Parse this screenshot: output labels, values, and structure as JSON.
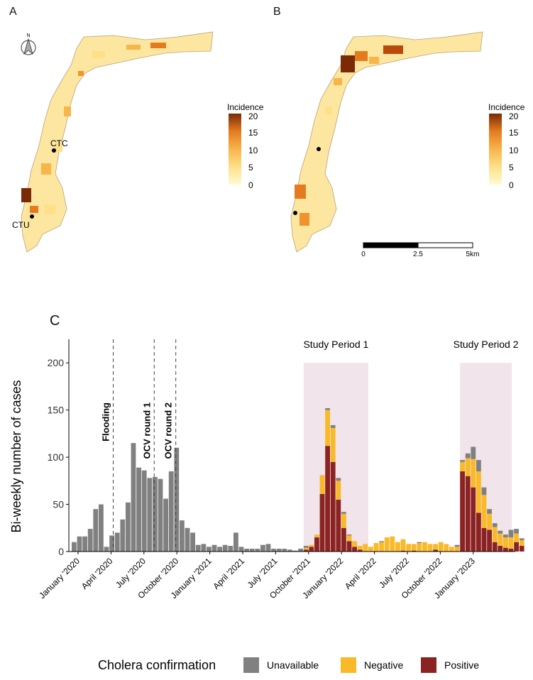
{
  "panels": {
    "a": "A",
    "b": "B",
    "c": "C"
  },
  "north_label": "N",
  "map_labels": {
    "ctc": "CTC",
    "ctu": "CTU"
  },
  "legend": {
    "title": "Incidence",
    "ticks": [
      "20",
      "15",
      "10",
      "5",
      "0"
    ],
    "colors": [
      "#fffbd4",
      "#fde089",
      "#f7b54a",
      "#e47c1f",
      "#b94a0c",
      "#7a2a05"
    ]
  },
  "scalebar": {
    "ticks": [
      "0",
      "2.5",
      "5km"
    ]
  },
  "chart_data": {
    "type": "bar",
    "stacked": true,
    "ylabel": "Bi-weekly number of cases",
    "ylim": [
      0,
      225
    ],
    "yticks": [
      0,
      50,
      100,
      150,
      200
    ],
    "x_tick_labels": [
      "January '2020",
      "April '2020",
      "July '2020",
      "October '2020",
      "January '2021",
      "April '2021",
      "July '2021",
      "October '2021",
      "January '2022",
      "April '2022",
      "July '2022",
      "October '2022",
      "January '2023"
    ],
    "series": [
      {
        "name": "Unavailable",
        "color": "#808080",
        "values": [
          10,
          16,
          16,
          24,
          45,
          50,
          5,
          17,
          20,
          34,
          52,
          115,
          89,
          86,
          78,
          79,
          77,
          56,
          85,
          110,
          33,
          25,
          20,
          7,
          8,
          5,
          7,
          5,
          7,
          6,
          20,
          5,
          3,
          3,
          3,
          7,
          8,
          3,
          3,
          3,
          2,
          1,
          3,
          2,
          0,
          0,
          0,
          2,
          3,
          3,
          2,
          1,
          0,
          0,
          0,
          0,
          0,
          1,
          0,
          0,
          0,
          0,
          0,
          0,
          1,
          0,
          0,
          0,
          0,
          0,
          0,
          2,
          2,
          5,
          13,
          12,
          8,
          5,
          4,
          3,
          3,
          8,
          5,
          2
        ]
      },
      {
        "name": "Negative",
        "color": "#f9b928",
        "values": [
          0,
          0,
          0,
          0,
          0,
          0,
          0,
          0,
          0,
          0,
          0,
          0,
          0,
          0,
          0,
          0,
          0,
          0,
          0,
          0,
          0,
          0,
          0,
          0,
          0,
          0,
          0,
          0,
          0,
          0,
          0,
          0,
          0,
          0,
          0,
          0,
          0,
          0,
          0,
          0,
          0,
          0,
          0,
          2,
          2,
          3,
          20,
          38,
          36,
          20,
          15,
          6,
          6,
          4,
          8,
          5,
          9,
          10,
          15,
          16,
          10,
          12,
          8,
          7,
          9,
          10,
          8,
          6,
          10,
          8,
          5,
          5,
          10,
          19,
          30,
          44,
          35,
          17,
          16,
          13,
          11,
          12,
          9,
          6
        ]
      },
      {
        "name": "Positive",
        "color": "#8b2323",
        "values": [
          0,
          0,
          0,
          0,
          0,
          0,
          0,
          0,
          0,
          0,
          0,
          0,
          0,
          0,
          0,
          0,
          0,
          0,
          0,
          0,
          0,
          0,
          0,
          0,
          0,
          0,
          0,
          0,
          0,
          0,
          0,
          0,
          0,
          0,
          0,
          0,
          0,
          0,
          0,
          0,
          0,
          0,
          0,
          2,
          5,
          15,
          61,
          112,
          95,
          55,
          25,
          11,
          5,
          2,
          0,
          0,
          0,
          0,
          0,
          0,
          0,
          1,
          0,
          1,
          0,
          0,
          0,
          2,
          0,
          0,
          0,
          0,
          85,
          80,
          68,
          41,
          25,
          23,
          10,
          6,
          4,
          3,
          10,
          6
        ]
      }
    ],
    "annotations": [
      {
        "label": "Flooding",
        "type": "vline"
      },
      {
        "label": "OCV round 1",
        "type": "vline"
      },
      {
        "label": "OCV round 2",
        "type": "vline"
      },
      {
        "label": "Study Period 1",
        "type": "shaded"
      },
      {
        "label": "Study Period 2",
        "type": "shaded"
      }
    ],
    "legend_title": "Cholera confirmation",
    "legend_position": "bottom",
    "grid": false
  }
}
